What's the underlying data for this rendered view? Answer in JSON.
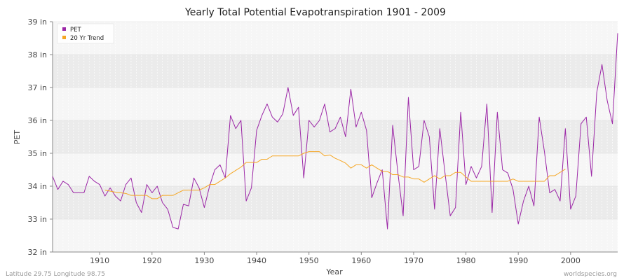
{
  "footer": {
    "left": "Latitude 29.75 Longitude 98.75",
    "right": "worldspecies.org"
  },
  "colors": {
    "pet": "#9b26a6",
    "trend": "#f5a623",
    "band_dark": "#ebebeb",
    "band_light": "#f6f6f6"
  },
  "chart_data": {
    "type": "line",
    "title": "Yearly Total Potential Evapotranspiration 1901 - 2009",
    "xlabel": "Year",
    "ylabel": "PET",
    "xlim": [
      1901,
      2009
    ],
    "ylim": [
      32,
      39
    ],
    "x_ticks": [
      1910,
      1920,
      1930,
      1940,
      1950,
      1960,
      1970,
      1980,
      1990,
      2000
    ],
    "y_ticks": [
      {
        "value": 32,
        "label": "32 in"
      },
      {
        "value": 33,
        "label": "33 in"
      },
      {
        "value": 34,
        "label": "34 in"
      },
      {
        "value": 35,
        "label": "35 in"
      },
      {
        "value": 36,
        "label": "36 in"
      },
      {
        "value": 37,
        "label": "37 in"
      },
      {
        "value": 38,
        "label": "38 in"
      },
      {
        "value": 39,
        "label": "39 in"
      }
    ],
    "grid": true,
    "legend": {
      "position": "top-left",
      "entries": [
        "PET",
        "20 Yr Trend"
      ]
    },
    "series": [
      {
        "name": "PET",
        "color": "#9b26a6",
        "x": [
          1901,
          1902,
          1903,
          1904,
          1905,
          1906,
          1907,
          1908,
          1909,
          1910,
          1911,
          1912,
          1913,
          1914,
          1915,
          1916,
          1917,
          1918,
          1919,
          1920,
          1921,
          1922,
          1923,
          1924,
          1925,
          1926,
          1927,
          1928,
          1929,
          1930,
          1931,
          1932,
          1933,
          1934,
          1935,
          1936,
          1937,
          1938,
          1939,
          1940,
          1941,
          1942,
          1943,
          1944,
          1945,
          1946,
          1947,
          1948,
          1949,
          1950,
          1951,
          1952,
          1953,
          1954,
          1955,
          1956,
          1957,
          1958,
          1959,
          1960,
          1961,
          1962,
          1963,
          1964,
          1965,
          1966,
          1967,
          1968,
          1969,
          1970,
          1971,
          1972,
          1973,
          1974,
          1975,
          1976,
          1977,
          1978,
          1979,
          1980,
          1981,
          1982,
          1983,
          1984,
          1985,
          1986,
          1987,
          1988,
          1989,
          1990,
          1991,
          1992,
          1993,
          1994,
          1995,
          1996,
          1997,
          1998,
          1999,
          2000,
          2001,
          2002,
          2003,
          2004,
          2005,
          2006,
          2007,
          2008,
          2009
        ],
        "values": [
          34.3,
          33.9,
          34.15,
          34.05,
          33.8,
          33.8,
          33.8,
          34.3,
          34.15,
          34.05,
          33.7,
          33.95,
          33.7,
          33.55,
          34.05,
          34.25,
          33.5,
          33.2,
          34.05,
          33.8,
          34.0,
          33.5,
          33.3,
          32.75,
          32.7,
          33.45,
          33.4,
          34.25,
          33.95,
          33.35,
          34.0,
          34.5,
          34.65,
          34.25,
          36.15,
          35.75,
          36.0,
          33.55,
          33.95,
          35.7,
          36.15,
          36.5,
          36.1,
          35.95,
          36.2,
          37.0,
          36.15,
          36.4,
          34.25,
          36.0,
          35.8,
          36.0,
          36.5,
          35.65,
          35.75,
          36.1,
          35.5,
          36.95,
          35.8,
          36.25,
          35.7,
          33.65,
          34.1,
          34.5,
          32.7,
          35.85,
          34.4,
          33.1,
          36.7,
          34.5,
          34.6,
          36.0,
          35.5,
          33.3,
          35.75,
          34.4,
          33.1,
          33.35,
          36.25,
          34.05,
          34.6,
          34.25,
          34.6,
          36.5,
          33.2,
          36.25,
          34.5,
          34.4,
          33.9,
          32.85,
          33.55,
          34.0,
          33.4,
          36.1,
          35.05,
          33.8,
          33.9,
          33.55,
          35.75,
          33.3,
          33.7,
          35.9,
          36.1,
          34.3,
          36.85,
          37.7,
          36.6,
          35.9,
          38.65
        ]
      },
      {
        "name": "20 Yr Trend",
        "color": "#f5a623",
        "x": [
          1911,
          1912,
          1913,
          1914,
          1915,
          1916,
          1917,
          1918,
          1919,
          1920,
          1921,
          1922,
          1923,
          1924,
          1925,
          1926,
          1927,
          1928,
          1929,
          1930,
          1931,
          1932,
          1933,
          1934,
          1935,
          1936,
          1937,
          1938,
          1939,
          1940,
          1941,
          1942,
          1943,
          1944,
          1945,
          1946,
          1947,
          1948,
          1949,
          1950,
          1951,
          1952,
          1953,
          1954,
          1955,
          1956,
          1957,
          1958,
          1959,
          1960,
          1961,
          1962,
          1963,
          1964,
          1965,
          1966,
          1967,
          1968,
          1969,
          1970,
          1971,
          1972,
          1973,
          1974,
          1975,
          1976,
          1977,
          1978,
          1979,
          1980,
          1981,
          1982,
          1983,
          1984,
          1985,
          1986,
          1987,
          1988,
          1989,
          1990,
          1991,
          1992,
          1993,
          1994,
          1995,
          1996,
          1997,
          1998,
          1999
        ],
        "values": [
          33.88,
          33.85,
          33.82,
          33.8,
          33.78,
          33.72,
          33.72,
          33.72,
          33.72,
          33.62,
          33.62,
          33.72,
          33.72,
          33.72,
          33.8,
          33.88,
          33.88,
          33.88,
          33.88,
          33.95,
          34.05,
          34.05,
          34.15,
          34.25,
          34.38,
          34.48,
          34.58,
          34.72,
          34.72,
          34.72,
          34.82,
          34.82,
          34.92,
          34.92,
          34.92,
          34.92,
          34.92,
          34.92,
          35.0,
          35.05,
          35.05,
          35.05,
          34.92,
          34.95,
          34.85,
          34.78,
          34.7,
          34.55,
          34.65,
          34.65,
          34.55,
          34.65,
          34.55,
          34.45,
          34.45,
          34.35,
          34.35,
          34.28,
          34.28,
          34.22,
          34.22,
          34.12,
          34.22,
          34.32,
          34.22,
          34.32,
          34.32,
          34.42,
          34.42,
          34.28,
          34.15,
          34.15,
          34.15,
          34.15,
          34.15,
          34.15,
          34.15,
          34.15,
          34.22,
          34.15,
          34.15,
          34.15,
          34.15,
          34.15,
          34.15,
          34.32,
          34.32,
          34.42,
          34.52
        ]
      }
    ]
  }
}
